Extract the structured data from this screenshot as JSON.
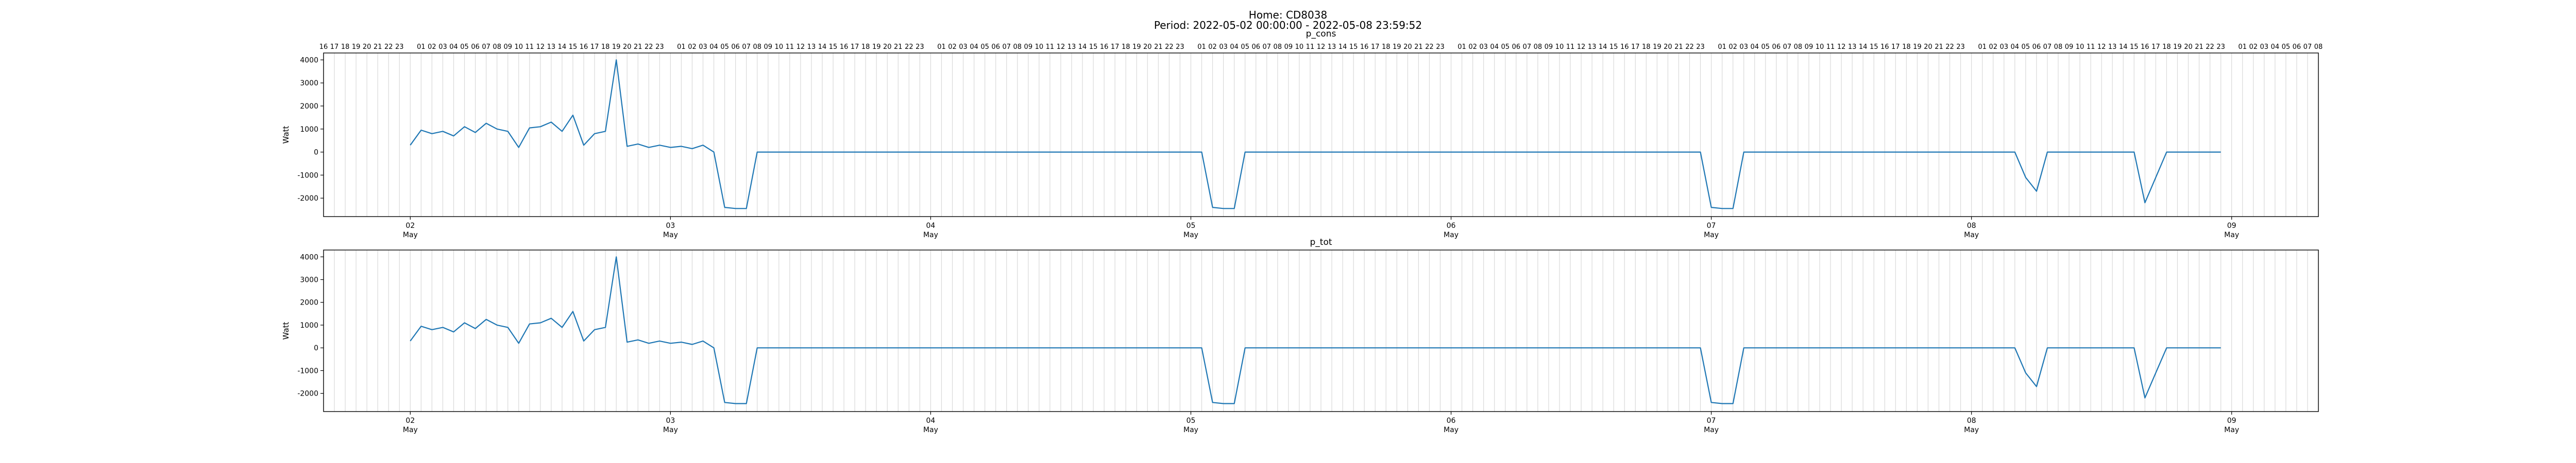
{
  "figure": {
    "title_line1": "Home: CD8038",
    "title_line2": "Period: 2022-05-02 00:00:00 - 2022-05-08 23:59:52"
  },
  "colors": {
    "series": "#1f77b4",
    "hour_gridline": "#d9d9d9",
    "axis": "#000000"
  },
  "chart_data": [
    {
      "type": "line",
      "title": "p_cons",
      "ylabel": "Watt",
      "xlabel": "",
      "ylim": [
        -2800,
        4300
      ],
      "xlim": [
        "2022-05-01 16:00",
        "2022-05-09 08:00"
      ],
      "yticks": [
        -2000,
        -1000,
        0,
        1000,
        2000,
        3000,
        4000
      ],
      "xticks_major": [
        "02",
        "03",
        "04",
        "05",
        "06",
        "07",
        "08",
        "09"
      ],
      "xticks_major_sub": "May",
      "top_hour_labels": true,
      "grid": "hourly vertical lines",
      "series": [
        {
          "x": [
            "2022-05-02 00:00",
            "2022-05-02 01:00",
            "2022-05-02 02:00",
            "2022-05-02 03:00",
            "2022-05-02 04:00",
            "2022-05-02 05:00",
            "2022-05-02 06:00",
            "2022-05-02 07:00",
            "2022-05-02 08:00",
            "2022-05-02 09:00",
            "2022-05-02 10:00",
            "2022-05-02 11:00",
            "2022-05-02 12:00",
            "2022-05-02 13:00",
            "2022-05-02 14:00",
            "2022-05-02 15:00",
            "2022-05-02 16:00",
            "2022-05-02 17:00",
            "2022-05-02 18:00",
            "2022-05-02 19:00",
            "2022-05-02 20:00",
            "2022-05-02 21:00",
            "2022-05-02 22:00",
            "2022-05-02 23:00",
            "2022-05-03 00:00",
            "2022-05-03 01:00",
            "2022-05-03 02:00",
            "2022-05-03 03:00",
            "2022-05-03 04:00",
            "2022-05-03 05:00",
            "2022-05-03 06:00",
            "2022-05-03 07:00",
            "2022-05-03 08:00",
            "2022-05-03 09:00",
            "2022-05-03 10:00",
            "2022-05-03 11:00",
            "2022-05-03 12:00",
            "2022-05-03 13:00",
            "2022-05-03 14:00",
            "2022-05-03 15:00",
            "2022-05-03 16:00",
            "2022-05-03 17:00",
            "2022-05-03 18:00",
            "2022-05-03 19:00",
            "2022-05-03 20:00",
            "2022-05-03 21:00",
            "2022-05-03 22:00",
            "2022-05-03 23:00",
            "2022-05-04 00:00",
            "2022-05-04 01:00",
            "2022-05-04 02:00",
            "2022-05-04 03:00",
            "2022-05-04 04:00",
            "2022-05-04 05:00",
            "2022-05-04 06:00",
            "2022-05-04 07:00",
            "2022-05-04 08:00",
            "2022-05-04 09:00",
            "2022-05-04 10:00",
            "2022-05-04 11:00",
            "2022-05-04 12:00",
            "2022-05-04 13:00",
            "2022-05-04 14:00",
            "2022-05-04 15:00",
            "2022-05-04 16:00",
            "2022-05-04 17:00",
            "2022-05-04 18:00",
            "2022-05-04 19:00",
            "2022-05-04 20:00",
            "2022-05-04 21:00",
            "2022-05-04 22:00",
            "2022-05-04 23:00",
            "2022-05-05 00:00",
            "2022-05-05 01:00",
            "2022-05-05 02:00",
            "2022-05-05 03:00",
            "2022-05-05 04:00",
            "2022-05-05 05:00",
            "2022-05-05 06:00",
            "2022-05-05 07:00",
            "2022-05-05 08:00",
            "2022-05-05 09:00",
            "2022-05-05 10:00",
            "2022-05-05 11:00",
            "2022-05-05 12:00",
            "2022-05-05 13:00",
            "2022-05-05 14:00",
            "2022-05-05 15:00",
            "2022-05-05 16:00",
            "2022-05-05 17:00",
            "2022-05-05 18:00",
            "2022-05-05 19:00",
            "2022-05-05 20:00",
            "2022-05-05 21:00",
            "2022-05-05 22:00",
            "2022-05-05 23:00",
            "2022-05-06 00:00",
            "2022-05-06 01:00",
            "2022-05-06 02:00",
            "2022-05-06 03:00",
            "2022-05-06 04:00",
            "2022-05-06 05:00",
            "2022-05-06 06:00",
            "2022-05-06 07:00",
            "2022-05-06 08:00",
            "2022-05-06 09:00",
            "2022-05-06 10:00",
            "2022-05-06 11:00",
            "2022-05-06 12:00",
            "2022-05-06 13:00",
            "2022-05-06 14:00",
            "2022-05-06 15:00",
            "2022-05-06 16:00",
            "2022-05-06 17:00",
            "2022-05-06 18:00",
            "2022-05-06 19:00",
            "2022-05-06 20:00",
            "2022-05-06 21:00",
            "2022-05-06 22:00",
            "2022-05-06 23:00",
            "2022-05-07 00:00",
            "2022-05-07 01:00",
            "2022-05-07 02:00",
            "2022-05-07 03:00",
            "2022-05-07 04:00",
            "2022-05-07 05:00",
            "2022-05-07 06:00",
            "2022-05-07 07:00",
            "2022-05-07 08:00",
            "2022-05-07 09:00",
            "2022-05-07 10:00",
            "2022-05-07 11:00",
            "2022-05-07 12:00",
            "2022-05-07 13:00",
            "2022-05-07 14:00",
            "2022-05-07 15:00",
            "2022-05-07 16:00",
            "2022-05-07 17:00",
            "2022-05-07 18:00",
            "2022-05-07 19:00",
            "2022-05-07 20:00",
            "2022-05-07 21:00",
            "2022-05-07 22:00",
            "2022-05-07 23:00",
            "2022-05-08 00:00",
            "2022-05-08 01:00",
            "2022-05-08 02:00",
            "2022-05-08 03:00",
            "2022-05-08 04:00",
            "2022-05-08 05:00",
            "2022-05-08 06:00",
            "2022-05-08 07:00",
            "2022-05-08 08:00",
            "2022-05-08 09:00",
            "2022-05-08 10:00",
            "2022-05-08 11:00",
            "2022-05-08 12:00",
            "2022-05-08 13:00",
            "2022-05-08 14:00",
            "2022-05-08 15:00",
            "2022-05-08 16:00",
            "2022-05-08 17:00",
            "2022-05-08 18:00",
            "2022-05-08 19:00",
            "2022-05-08 20:00",
            "2022-05-08 21:00",
            "2022-05-08 22:00",
            "2022-05-08 23:00"
          ],
          "y": [
            300,
            950,
            800,
            900,
            700,
            1100,
            850,
            1250,
            1000,
            900,
            200,
            1050,
            1100,
            1300,
            900,
            1600,
            300,
            800,
            900,
            4000,
            250,
            350,
            200,
            300,
            200,
            250,
            150,
            300,
            0,
            -2400,
            -2450,
            -2450,
            0,
            0,
            0,
            0,
            0,
            0,
            0,
            0,
            0,
            0,
            0,
            0,
            0,
            0,
            0,
            0,
            0,
            0,
            0,
            0,
            0,
            0,
            0,
            0,
            0,
            0,
            0,
            0,
            0,
            0,
            0,
            0,
            0,
            0,
            0,
            0,
            0,
            0,
            0,
            0,
            0,
            0,
            -2400,
            -2450,
            -2450,
            0,
            0,
            0,
            0,
            0,
            0,
            0,
            0,
            0,
            0,
            0,
            0,
            0,
            0,
            0,
            0,
            0,
            0,
            0,
            0,
            0,
            0,
            0,
            0,
            0,
            0,
            0,
            0,
            0,
            0,
            0,
            0,
            0,
            0,
            0,
            0,
            0,
            0,
            0,
            0,
            0,
            0,
            0,
            -2400,
            -2450,
            -2450,
            0,
            0,
            0,
            0,
            0,
            0,
            0,
            0,
            0,
            0,
            0,
            0,
            0,
            0,
            0,
            0,
            0,
            0,
            0,
            0,
            0,
            0,
            0,
            0,
            0,
            0,
            -1100,
            -1700,
            0,
            0,
            0,
            0,
            0,
            0,
            0,
            0,
            0,
            -2200,
            -1100,
            0,
            0,
            0,
            0,
            0,
            0
          ]
        }
      ]
    },
    {
      "type": "line",
      "title": "p_tot",
      "ylabel": "Watt",
      "xlabel": "",
      "ylim": [
        -2800,
        4300
      ],
      "xlim": [
        "2022-05-01 16:00",
        "2022-05-09 08:00"
      ],
      "yticks": [
        -2000,
        -1000,
        0,
        1000,
        2000,
        3000,
        4000
      ],
      "xticks_major": [
        "02",
        "03",
        "04",
        "05",
        "06",
        "07",
        "08",
        "09"
      ],
      "xticks_major_sub": "May",
      "top_hour_labels": false,
      "grid": "hourly vertical lines",
      "series": [
        {
          "x": [
            "2022-05-02 00:00",
            "2022-05-02 01:00",
            "2022-05-02 02:00",
            "2022-05-02 03:00",
            "2022-05-02 04:00",
            "2022-05-02 05:00",
            "2022-05-02 06:00",
            "2022-05-02 07:00",
            "2022-05-02 08:00",
            "2022-05-02 09:00",
            "2022-05-02 10:00",
            "2022-05-02 11:00",
            "2022-05-02 12:00",
            "2022-05-02 13:00",
            "2022-05-02 14:00",
            "2022-05-02 15:00",
            "2022-05-02 16:00",
            "2022-05-02 17:00",
            "2022-05-02 18:00",
            "2022-05-02 19:00",
            "2022-05-02 20:00",
            "2022-05-02 21:00",
            "2022-05-02 22:00",
            "2022-05-02 23:00",
            "2022-05-03 00:00",
            "2022-05-03 01:00",
            "2022-05-03 02:00",
            "2022-05-03 03:00",
            "2022-05-03 04:00",
            "2022-05-03 05:00",
            "2022-05-03 06:00",
            "2022-05-03 07:00",
            "2022-05-03 08:00",
            "2022-05-03 09:00",
            "2022-05-03 10:00",
            "2022-05-03 11:00",
            "2022-05-03 12:00",
            "2022-05-03 13:00",
            "2022-05-03 14:00",
            "2022-05-03 15:00",
            "2022-05-03 16:00",
            "2022-05-03 17:00",
            "2022-05-03 18:00",
            "2022-05-03 19:00",
            "2022-05-03 20:00",
            "2022-05-03 21:00",
            "2022-05-03 22:00",
            "2022-05-03 23:00",
            "2022-05-04 00:00",
            "2022-05-04 01:00",
            "2022-05-04 02:00",
            "2022-05-04 03:00",
            "2022-05-04 04:00",
            "2022-05-04 05:00",
            "2022-05-04 06:00",
            "2022-05-04 07:00",
            "2022-05-04 08:00",
            "2022-05-04 09:00",
            "2022-05-04 10:00",
            "2022-05-04 11:00",
            "2022-05-04 12:00",
            "2022-05-04 13:00",
            "2022-05-04 14:00",
            "2022-05-04 15:00",
            "2022-05-04 16:00",
            "2022-05-04 17:00",
            "2022-05-04 18:00",
            "2022-05-04 19:00",
            "2022-05-04 20:00",
            "2022-05-04 21:00",
            "2022-05-04 22:00",
            "2022-05-04 23:00",
            "2022-05-05 00:00",
            "2022-05-05 01:00",
            "2022-05-05 02:00",
            "2022-05-05 03:00",
            "2022-05-05 04:00",
            "2022-05-05 05:00",
            "2022-05-05 06:00",
            "2022-05-05 07:00",
            "2022-05-05 08:00",
            "2022-05-05 09:00",
            "2022-05-05 10:00",
            "2022-05-05 11:00",
            "2022-05-05 12:00",
            "2022-05-05 13:00",
            "2022-05-05 14:00",
            "2022-05-05 15:00",
            "2022-05-05 16:00",
            "2022-05-05 17:00",
            "2022-05-05 18:00",
            "2022-05-05 19:00",
            "2022-05-05 20:00",
            "2022-05-05 21:00",
            "2022-05-05 22:00",
            "2022-05-05 23:00",
            "2022-05-06 00:00",
            "2022-05-06 01:00",
            "2022-05-06 02:00",
            "2022-05-06 03:00",
            "2022-05-06 04:00",
            "2022-05-06 05:00",
            "2022-05-06 06:00",
            "2022-05-06 07:00",
            "2022-05-06 08:00",
            "2022-05-06 09:00",
            "2022-05-06 10:00",
            "2022-05-06 11:00",
            "2022-05-06 12:00",
            "2022-05-06 13:00",
            "2022-05-06 14:00",
            "2022-05-06 15:00",
            "2022-05-06 16:00",
            "2022-05-06 17:00",
            "2022-05-06 18:00",
            "2022-05-06 19:00",
            "2022-05-06 20:00",
            "2022-05-06 21:00",
            "2022-05-06 22:00",
            "2022-05-06 23:00",
            "2022-05-07 00:00",
            "2022-05-07 01:00",
            "2022-05-07 02:00",
            "2022-05-07 03:00",
            "2022-05-07 04:00",
            "2022-05-07 05:00",
            "2022-05-07 06:00",
            "2022-05-07 07:00",
            "2022-05-07 08:00",
            "2022-05-07 09:00",
            "2022-05-07 10:00",
            "2022-05-07 11:00",
            "2022-05-07 12:00",
            "2022-05-07 13:00",
            "2022-05-07 14:00",
            "2022-05-07 15:00",
            "2022-05-07 16:00",
            "2022-05-07 17:00",
            "2022-05-07 18:00",
            "2022-05-07 19:00",
            "2022-05-07 20:00",
            "2022-05-07 21:00",
            "2022-05-07 22:00",
            "2022-05-07 23:00",
            "2022-05-08 00:00",
            "2022-05-08 01:00",
            "2022-05-08 02:00",
            "2022-05-08 03:00",
            "2022-05-08 04:00",
            "2022-05-08 05:00",
            "2022-05-08 06:00",
            "2022-05-08 07:00",
            "2022-05-08 08:00",
            "2022-05-08 09:00",
            "2022-05-08 10:00",
            "2022-05-08 11:00",
            "2022-05-08 12:00",
            "2022-05-08 13:00",
            "2022-05-08 14:00",
            "2022-05-08 15:00",
            "2022-05-08 16:00",
            "2022-05-08 17:00",
            "2022-05-08 18:00",
            "2022-05-08 19:00",
            "2022-05-08 20:00",
            "2022-05-08 21:00",
            "2022-05-08 22:00",
            "2022-05-08 23:00"
          ],
          "y": [
            300,
            950,
            800,
            900,
            700,
            1100,
            850,
            1250,
            1000,
            900,
            200,
            1050,
            1100,
            1300,
            900,
            1600,
            300,
            800,
            900,
            4000,
            250,
            350,
            200,
            300,
            200,
            250,
            150,
            300,
            0,
            -2400,
            -2450,
            -2450,
            0,
            0,
            0,
            0,
            0,
            0,
            0,
            0,
            0,
            0,
            0,
            0,
            0,
            0,
            0,
            0,
            0,
            0,
            0,
            0,
            0,
            0,
            0,
            0,
            0,
            0,
            0,
            0,
            0,
            0,
            0,
            0,
            0,
            0,
            0,
            0,
            0,
            0,
            0,
            0,
            0,
            0,
            -2400,
            -2450,
            -2450,
            0,
            0,
            0,
            0,
            0,
            0,
            0,
            0,
            0,
            0,
            0,
            0,
            0,
            0,
            0,
            0,
            0,
            0,
            0,
            0,
            0,
            0,
            0,
            0,
            0,
            0,
            0,
            0,
            0,
            0,
            0,
            0,
            0,
            0,
            0,
            0,
            0,
            0,
            0,
            0,
            0,
            0,
            0,
            -2400,
            -2450,
            -2450,
            0,
            0,
            0,
            0,
            0,
            0,
            0,
            0,
            0,
            0,
            0,
            0,
            0,
            0,
            0,
            0,
            0,
            0,
            0,
            0,
            0,
            0,
            0,
            0,
            0,
            0,
            -1100,
            -1700,
            0,
            0,
            0,
            0,
            0,
            0,
            0,
            0,
            0,
            -2200,
            -1100,
            0,
            0,
            0,
            0,
            0,
            0
          ]
        }
      ]
    }
  ]
}
